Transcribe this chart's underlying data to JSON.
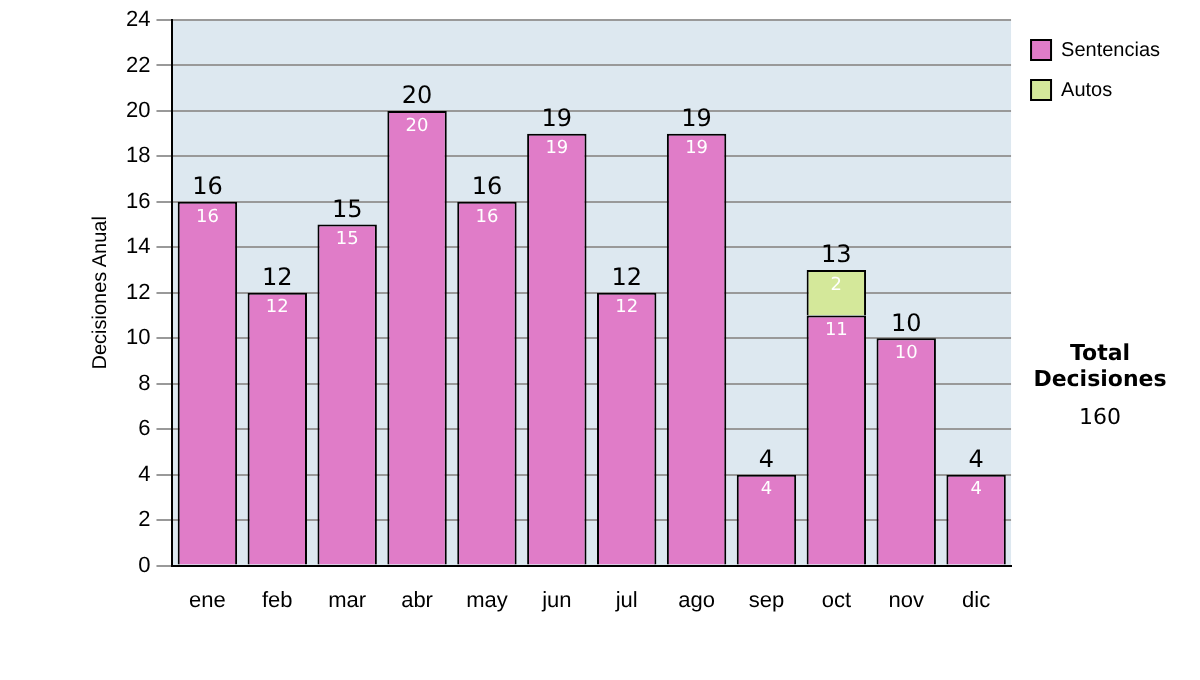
{
  "chart_data": {
    "type": "bar",
    "stacked": true,
    "ylabel": "Decisiones Anual",
    "categories": [
      "ene",
      "feb",
      "mar",
      "abr",
      "may",
      "jun",
      "jul",
      "ago",
      "sep",
      "oct",
      "nov",
      "dic"
    ],
    "series": [
      {
        "name": "Sentencias",
        "color": "#e07cc8",
        "values": [
          16,
          12,
          15,
          20,
          16,
          19,
          12,
          19,
          4,
          11,
          10,
          4
        ]
      },
      {
        "name": "Autos",
        "color": "#d4e89a",
        "values": [
          null,
          null,
          null,
          null,
          null,
          null,
          null,
          null,
          null,
          2,
          null,
          null
        ]
      }
    ],
    "totals": [
      "16",
      "12",
      "15",
      "20",
      "16",
      "19",
      "12",
      "19",
      "4",
      "13",
      "10",
      "4"
    ],
    "data_labels": true,
    "ylim": [
      0,
      24
    ],
    "yticks": [
      0,
      2,
      4,
      6,
      8,
      10,
      12,
      14,
      16,
      18,
      20,
      22,
      24
    ],
    "grid": "y",
    "legend": "right",
    "annotations": [
      "Total Decisiones",
      "160"
    ]
  }
}
